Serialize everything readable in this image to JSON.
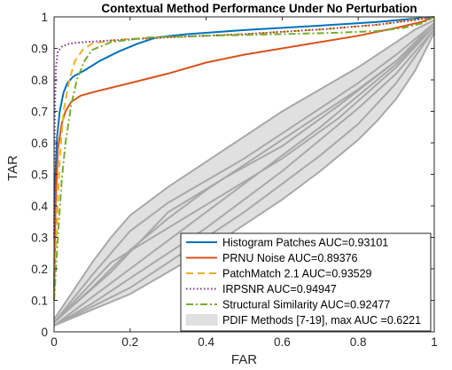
{
  "chart_data": {
    "type": "line",
    "title": "Contextual Method Performance Under No Perturbation",
    "xlabel": "FAR",
    "ylabel": "TAR",
    "xlim": [
      0,
      1
    ],
    "ylim": [
      0,
      1
    ],
    "x_ticks": [
      "0",
      "0.2",
      "0.4",
      "0.6",
      "0.8",
      "1"
    ],
    "y_ticks": [
      "0",
      "0.1",
      "0.2",
      "0.3",
      "0.4",
      "0.5",
      "0.6",
      "0.7",
      "0.8",
      "0.9",
      "1"
    ],
    "grid": false,
    "legend_position": "bottom-right",
    "series": [
      {
        "name": "Histogram Patches AUC=0.93101",
        "color": "#0072BD",
        "style": "solid",
        "points": [
          [
            0,
            0.12
          ],
          [
            0.003,
            0.48
          ],
          [
            0.008,
            0.62
          ],
          [
            0.015,
            0.7
          ],
          [
            0.025,
            0.76
          ],
          [
            0.035,
            0.79
          ],
          [
            0.05,
            0.81
          ],
          [
            0.08,
            0.83
          ],
          [
            0.12,
            0.86
          ],
          [
            0.17,
            0.89
          ],
          [
            0.22,
            0.915
          ],
          [
            0.27,
            0.935
          ],
          [
            0.35,
            0.945
          ],
          [
            0.5,
            0.958
          ],
          [
            0.7,
            0.972
          ],
          [
            0.85,
            0.984
          ],
          [
            1,
            1
          ]
        ]
      },
      {
        "name": "PRNU Noise AUC=0.89376",
        "color": "#D95319",
        "style": "solid",
        "points": [
          [
            0,
            0.1
          ],
          [
            0.004,
            0.4
          ],
          [
            0.01,
            0.58
          ],
          [
            0.02,
            0.66
          ],
          [
            0.03,
            0.7
          ],
          [
            0.045,
            0.73
          ],
          [
            0.07,
            0.75
          ],
          [
            0.1,
            0.76
          ],
          [
            0.15,
            0.775
          ],
          [
            0.2,
            0.79
          ],
          [
            0.3,
            0.82
          ],
          [
            0.4,
            0.855
          ],
          [
            0.5,
            0.88
          ],
          [
            0.6,
            0.9
          ],
          [
            0.7,
            0.92
          ],
          [
            0.8,
            0.94
          ],
          [
            0.9,
            0.965
          ],
          [
            0.97,
            0.985
          ],
          [
            1,
            1
          ]
        ]
      },
      {
        "name": "PatchMatch 2.1 AUC=0.93529",
        "color": "#EDB120",
        "style": "dash",
        "points": [
          [
            0,
            0.12
          ],
          [
            0.008,
            0.35
          ],
          [
            0.015,
            0.55
          ],
          [
            0.025,
            0.7
          ],
          [
            0.04,
            0.8
          ],
          [
            0.055,
            0.86
          ],
          [
            0.075,
            0.895
          ],
          [
            0.1,
            0.915
          ],
          [
            0.15,
            0.925
          ],
          [
            0.2,
            0.93
          ],
          [
            0.3,
            0.935
          ],
          [
            0.5,
            0.945
          ],
          [
            0.7,
            0.96
          ],
          [
            0.85,
            0.975
          ],
          [
            1,
            1
          ]
        ]
      },
      {
        "name": "IRPSNR AUC=0.94947",
        "color": "#7E2F8E",
        "style": "dot",
        "points": [
          [
            0,
            0.3
          ],
          [
            0.002,
            0.7
          ],
          [
            0.005,
            0.84
          ],
          [
            0.01,
            0.89
          ],
          [
            0.02,
            0.905
          ],
          [
            0.04,
            0.915
          ],
          [
            0.08,
            0.92
          ],
          [
            0.15,
            0.925
          ],
          [
            0.3,
            0.935
          ],
          [
            0.5,
            0.945
          ],
          [
            0.7,
            0.96
          ],
          [
            0.85,
            0.975
          ],
          [
            0.95,
            0.99
          ],
          [
            1,
            1
          ]
        ]
      },
      {
        "name": "Structural Similarity AUC=0.92477",
        "color": "#77AC30",
        "style": "dashdot",
        "points": [
          [
            0,
            0.1
          ],
          [
            0.01,
            0.3
          ],
          [
            0.02,
            0.48
          ],
          [
            0.03,
            0.6
          ],
          [
            0.045,
            0.72
          ],
          [
            0.06,
            0.8
          ],
          [
            0.08,
            0.86
          ],
          [
            0.1,
            0.895
          ],
          [
            0.15,
            0.92
          ],
          [
            0.25,
            0.935
          ],
          [
            0.4,
            0.94
          ],
          [
            0.6,
            0.945
          ],
          [
            0.75,
            0.95
          ],
          [
            0.85,
            0.955
          ],
          [
            0.92,
            0.965
          ],
          [
            0.97,
            0.98
          ],
          [
            1,
            1
          ]
        ]
      }
    ],
    "band": {
      "name": "PDIF Methods [7-19], max AUC =0.6221",
      "fill": "#E0E0E0",
      "line_color": "#A8A8A8",
      "upper": [
        [
          0,
          0.04
        ],
        [
          0.05,
          0.13
        ],
        [
          0.1,
          0.22
        ],
        [
          0.15,
          0.3
        ],
        [
          0.2,
          0.37
        ],
        [
          0.3,
          0.46
        ],
        [
          0.4,
          0.54
        ],
        [
          0.5,
          0.62
        ],
        [
          0.6,
          0.7
        ],
        [
          0.7,
          0.77
        ],
        [
          0.8,
          0.84
        ],
        [
          0.9,
          0.92
        ],
        [
          0.95,
          0.96
        ],
        [
          1,
          0.99
        ]
      ],
      "lower": [
        [
          0,
          0.02
        ],
        [
          0.1,
          0.07
        ],
        [
          0.2,
          0.12
        ],
        [
          0.3,
          0.19
        ],
        [
          0.4,
          0.26
        ],
        [
          0.5,
          0.34
        ],
        [
          0.6,
          0.42
        ],
        [
          0.7,
          0.51
        ],
        [
          0.8,
          0.61
        ],
        [
          0.85,
          0.67
        ],
        [
          0.9,
          0.74
        ],
        [
          0.95,
          0.83
        ],
        [
          1,
          0.95
        ]
      ],
      "curves": [
        [
          [
            0,
            0.03
          ],
          [
            0.1,
            0.18
          ],
          [
            0.2,
            0.32
          ],
          [
            0.3,
            0.41
          ],
          [
            0.4,
            0.48
          ],
          [
            0.5,
            0.55
          ],
          [
            0.6,
            0.63
          ],
          [
            0.7,
            0.71
          ],
          [
            0.8,
            0.79
          ],
          [
            0.9,
            0.88
          ],
          [
            1,
            0.98
          ]
        ],
        [
          [
            0,
            0.03
          ],
          [
            0.1,
            0.14
          ],
          [
            0.2,
            0.26
          ],
          [
            0.3,
            0.36
          ],
          [
            0.4,
            0.45
          ],
          [
            0.5,
            0.53
          ],
          [
            0.6,
            0.61
          ],
          [
            0.7,
            0.69
          ],
          [
            0.8,
            0.77
          ],
          [
            0.9,
            0.86
          ],
          [
            1,
            0.97
          ]
        ],
        [
          [
            0,
            0.02
          ],
          [
            0.1,
            0.11
          ],
          [
            0.2,
            0.2
          ],
          [
            0.3,
            0.29
          ],
          [
            0.4,
            0.38
          ],
          [
            0.5,
            0.47
          ],
          [
            0.6,
            0.56
          ],
          [
            0.7,
            0.65
          ],
          [
            0.8,
            0.75
          ],
          [
            0.9,
            0.85
          ],
          [
            1,
            0.97
          ]
        ],
        [
          [
            0,
            0.02
          ],
          [
            0.1,
            0.09
          ],
          [
            0.2,
            0.17
          ],
          [
            0.3,
            0.25
          ],
          [
            0.4,
            0.33
          ],
          [
            0.5,
            0.42
          ],
          [
            0.6,
            0.51
          ],
          [
            0.7,
            0.61
          ],
          [
            0.8,
            0.71
          ],
          [
            0.9,
            0.82
          ],
          [
            1,
            0.96
          ]
        ],
        [
          [
            0,
            0.02
          ],
          [
            0.1,
            0.08
          ],
          [
            0.2,
            0.14
          ],
          [
            0.3,
            0.22
          ],
          [
            0.4,
            0.3
          ],
          [
            0.5,
            0.38
          ],
          [
            0.6,
            0.47
          ],
          [
            0.7,
            0.56
          ],
          [
            0.8,
            0.66
          ],
          [
            0.9,
            0.79
          ],
          [
            1,
            0.96
          ]
        ],
        [
          [
            0,
            0.03
          ],
          [
            0.15,
            0.22
          ],
          [
            0.3,
            0.33
          ],
          [
            0.45,
            0.44
          ],
          [
            0.6,
            0.55
          ],
          [
            0.75,
            0.68
          ],
          [
            0.9,
            0.84
          ],
          [
            1,
            0.97
          ]
        ],
        [
          [
            0,
            0.03
          ],
          [
            0.15,
            0.19
          ],
          [
            0.3,
            0.38
          ],
          [
            0.45,
            0.49
          ],
          [
            0.6,
            0.59
          ],
          [
            0.75,
            0.72
          ],
          [
            0.9,
            0.86
          ],
          [
            1,
            0.98
          ]
        ]
      ]
    }
  }
}
